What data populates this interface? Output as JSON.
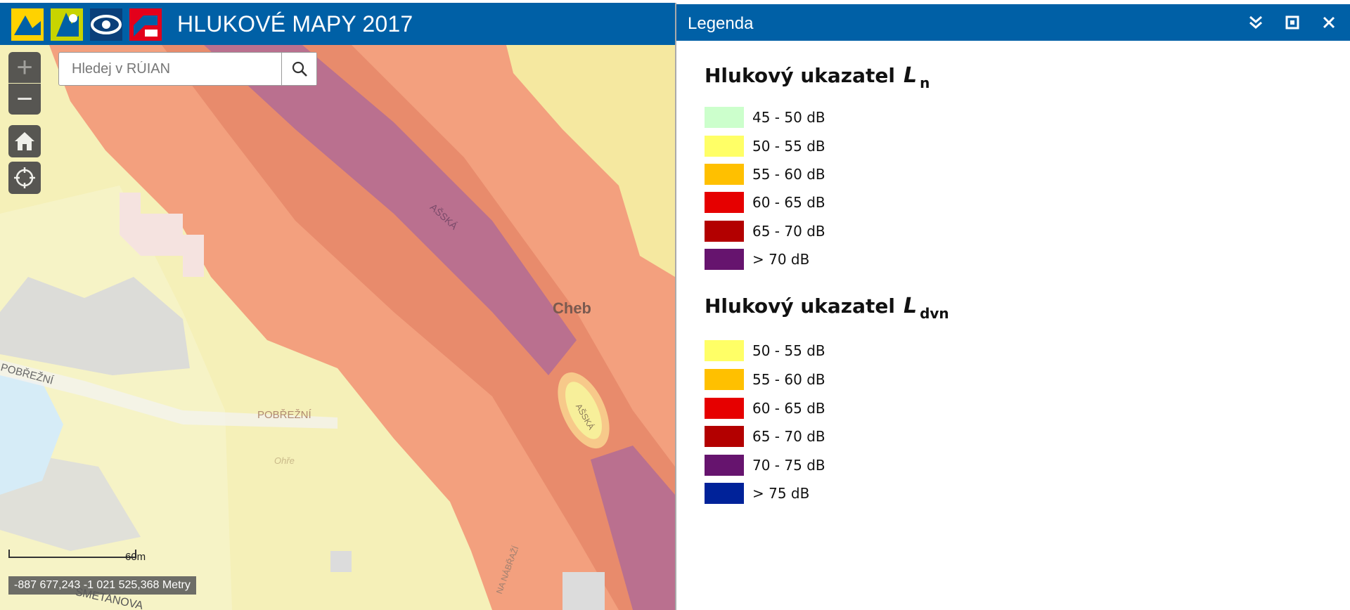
{
  "header": {
    "title": "HLUKOVÉ MAPY 2017"
  },
  "search": {
    "placeholder": "Hledej v RÚIAN"
  },
  "map_controls": {
    "zoom_in": "+",
    "zoom_out": "−"
  },
  "map_labels": {
    "city": "Cheb",
    "street_asska_1": "AŠSKÁ",
    "street_asska_2": "AŠSKÁ",
    "street_pobrezni_1": "POBŘEŽNÍ",
    "street_pobrezni_2": "POBŘEŽNÍ",
    "street_smetanova": "SMETANOVA",
    "street_na_nabrazi": "NA NÁBŘAŽÍ",
    "river": "Ohře"
  },
  "scale": {
    "label": "60m"
  },
  "coordinates": "-887 677,243 -1 021 525,368 Metry",
  "legend": {
    "title": "Legenda",
    "sections": [
      {
        "heading": "Hlukový ukazatel",
        "symbol": "L",
        "subscript": "n",
        "items": [
          {
            "label": "45 - 50 dB",
            "color": "#ccffcc"
          },
          {
            "label": "50 - 55 dB",
            "color": "#ffff66"
          },
          {
            "label": "55 - 60 dB",
            "color": "#ffc000"
          },
          {
            "label": "60 - 65 dB",
            "color": "#e60000"
          },
          {
            "label": "65 - 70 dB",
            "color": "#b30000"
          },
          {
            "label": "> 70 dB",
            "color": "#66146e"
          }
        ]
      },
      {
        "heading": "Hlukový ukazatel",
        "symbol": "L",
        "subscript": "dvn",
        "items": [
          {
            "label": "50 - 55 dB",
            "color": "#ffff66"
          },
          {
            "label": "55 - 60 dB",
            "color": "#ffc000"
          },
          {
            "label": "60 - 65 dB",
            "color": "#e60000"
          },
          {
            "label": "65 - 70 dB",
            "color": "#b30000"
          },
          {
            "label": "70 - 75 dB",
            "color": "#66146e"
          },
          {
            "label": "> 75 dB",
            "color": "#002299"
          }
        ]
      }
    ]
  }
}
